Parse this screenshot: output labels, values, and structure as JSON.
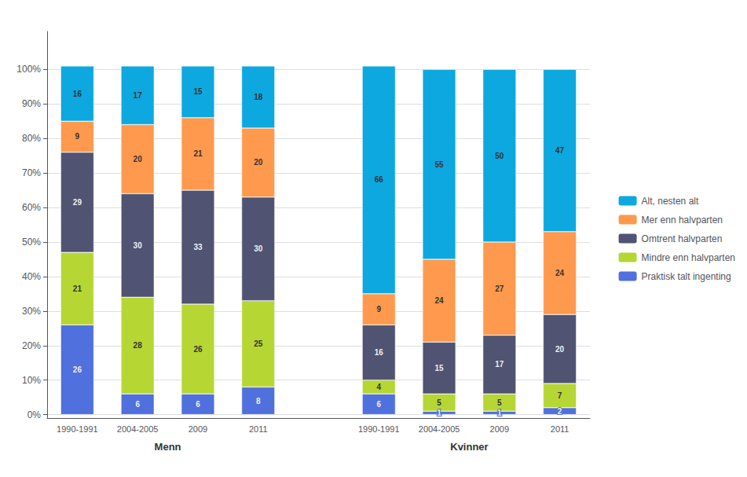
{
  "chart_data": {
    "type": "bar",
    "stacked": true,
    "data_labels": true,
    "grid": true,
    "legend": "right",
    "groups": [
      {
        "name": "Menn",
        "categories": [
          "1990-1991",
          "2004-2005",
          "2009",
          "2011"
        ]
      },
      {
        "name": "Kvinner",
        "categories": [
          "1990-1991",
          "2004-2005",
          "2009",
          "2011"
        ]
      }
    ],
    "series": [
      {
        "name": "Alt, nesten alt",
        "values": [
          16,
          17,
          15,
          18,
          66,
          55,
          50,
          47
        ]
      },
      {
        "name": "Mer enn halvparten",
        "values": [
          9,
          20,
          21,
          20,
          9,
          24,
          27,
          24
        ]
      },
      {
        "name": "Omtrent halvparten",
        "values": [
          29,
          30,
          33,
          30,
          16,
          15,
          17,
          20
        ]
      },
      {
        "name": "Mindre enn halvparten",
        "values": [
          21,
          28,
          26,
          25,
          4,
          5,
          5,
          7
        ]
      },
      {
        "name": "Praktisk talt ingenting",
        "values": [
          26,
          6,
          6,
          8,
          6,
          1,
          1,
          2
        ]
      }
    ],
    "ylim": [
      -1,
      111
    ],
    "yticks": [
      {
        "value": 0,
        "label": "0%"
      },
      {
        "value": 10,
        "label": "10%"
      },
      {
        "value": 20,
        "label": "20%"
      },
      {
        "value": 30,
        "label": "30%"
      },
      {
        "value": 40,
        "label": "40%"
      },
      {
        "value": 50,
        "label": "50%"
      },
      {
        "value": 60,
        "label": "60%"
      },
      {
        "value": 70,
        "label": "70%"
      },
      {
        "value": 80,
        "label": "80%"
      },
      {
        "value": 90,
        "label": "90%"
      },
      {
        "value": 100,
        "label": "100%"
      }
    ]
  }
}
